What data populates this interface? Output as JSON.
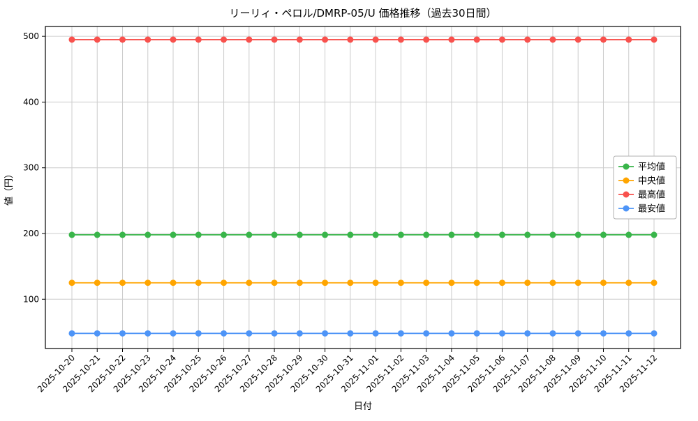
{
  "chart_data": {
    "type": "line",
    "title": "リーリィ・ペロル/DMRP-05/U 価格推移（過去30日間）",
    "xlabel": "日付",
    "ylabel": "値（円）",
    "categories": [
      "2025-10-20",
      "2025-10-21",
      "2025-10-22",
      "2025-10-23",
      "2025-10-24",
      "2025-10-25",
      "2025-10-26",
      "2025-10-27",
      "2025-10-28",
      "2025-10-29",
      "2025-10-30",
      "2025-10-31",
      "2025-11-01",
      "2025-11-02",
      "2025-11-03",
      "2025-11-04",
      "2025-11-05",
      "2025-11-06",
      "2025-11-07",
      "2025-11-08",
      "2025-11-09",
      "2025-11-10",
      "2025-11-11",
      "2025-11-12"
    ],
    "series": [
      {
        "name": "平均値",
        "color": "#39b54a",
        "values": [
          198,
          198,
          198,
          198,
          198,
          198,
          198,
          198,
          198,
          198,
          198,
          198,
          198,
          198,
          198,
          198,
          198,
          198,
          198,
          198,
          198,
          198,
          198,
          198
        ]
      },
      {
        "name": "中央値",
        "color": "#ffa500",
        "values": [
          125,
          125,
          125,
          125,
          125,
          125,
          125,
          125,
          125,
          125,
          125,
          125,
          125,
          125,
          125,
          125,
          125,
          125,
          125,
          125,
          125,
          125,
          125,
          125
        ]
      },
      {
        "name": "最高値",
        "color": "#f8514d",
        "values": [
          495,
          495,
          495,
          495,
          495,
          495,
          495,
          495,
          495,
          495,
          495,
          495,
          495,
          495,
          495,
          495,
          495,
          495,
          495,
          495,
          495,
          495,
          495,
          495
        ]
      },
      {
        "name": "最安値",
        "color": "#4d94f7",
        "values": [
          48,
          48,
          48,
          48,
          48,
          48,
          48,
          48,
          48,
          48,
          48,
          48,
          48,
          48,
          48,
          48,
          48,
          48,
          48,
          48,
          48,
          48,
          48,
          48
        ]
      }
    ],
    "ylim": [
      25,
      515
    ],
    "yticks": [
      100,
      200,
      300,
      400,
      500
    ],
    "grid": true,
    "grid_color": "#cccccc",
    "legend_position": "center right"
  }
}
